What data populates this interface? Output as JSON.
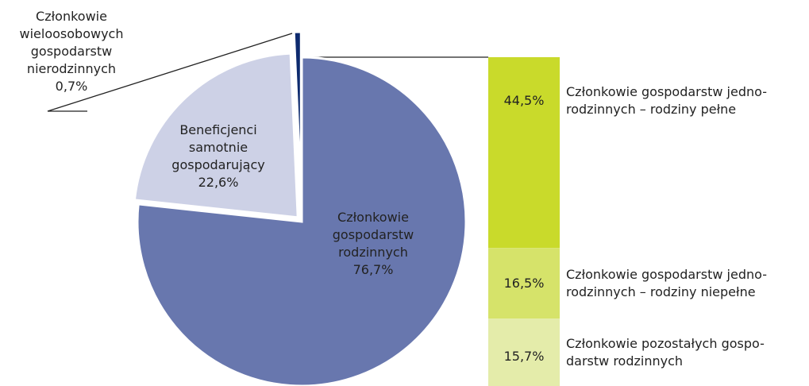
{
  "chart_data": [
    {
      "type": "pie",
      "categories": [
        "Członkowie\ngospodarstw\nrodzinnych",
        "Beneficjenci\nsamotnie\ngospodarujący",
        "Członkowie\nwieloosobowych\ngospodarstw\nnierodzinnych"
      ],
      "values": [
        76.7,
        22.6,
        0.7
      ],
      "value_labels": [
        "76,7%",
        "22,6%",
        "0,7%"
      ],
      "colors": [
        "#6877ae",
        "#cdd1e6",
        "#0d2a6e"
      ]
    },
    {
      "type": "bar",
      "stacked": true,
      "categories": [
        "Członkowie gospodarstw jedno-\nrodzinnych – rodziny pełne",
        "Członkowie gospodarstw jedno-\nrodzinnych – rodziny niepełne",
        "Członkowie pozostałych gospo-\ndarstw rodzinnych"
      ],
      "values": [
        44.5,
        16.5,
        15.7
      ],
      "value_labels": [
        "44,5%",
        "16,5%",
        "15,7%"
      ],
      "colors": [
        "#c9da2b",
        "#d6e36a",
        "#e4ecaa"
      ]
    }
  ]
}
